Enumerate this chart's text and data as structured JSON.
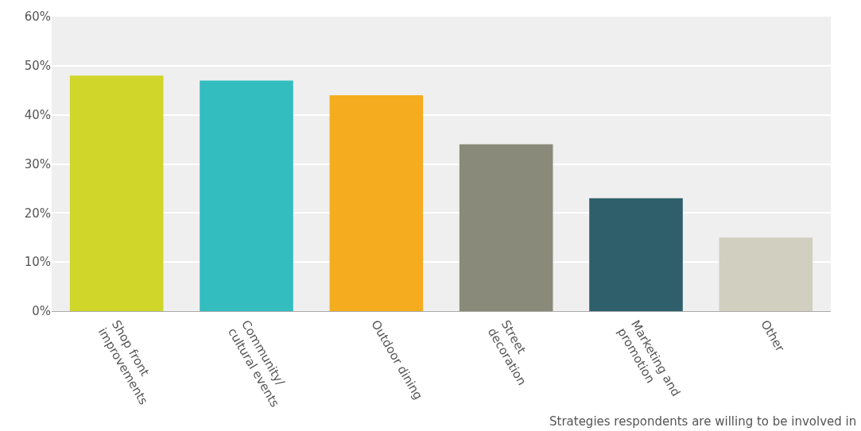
{
  "chart_data": {
    "type": "bar",
    "categories": [
      "Shop front\nimprovements",
      "Community/\ncultural events",
      "Outdoor dining",
      "Street\ndecoration",
      "Marketing and\npromotion",
      "Other"
    ],
    "values": [
      48,
      47,
      44,
      34,
      23,
      15
    ],
    "colors": [
      "#d0d62a",
      "#33bdbf",
      "#f5ad1f",
      "#8a8a7a",
      "#2e5f6b",
      "#d0cfc0"
    ],
    "ylim": [
      0,
      60
    ],
    "yticks": [
      {
        "value": 0,
        "label": "0%"
      },
      {
        "value": 10,
        "label": "10%"
      },
      {
        "value": 20,
        "label": "20%"
      },
      {
        "value": 30,
        "label": "30%"
      },
      {
        "value": 40,
        "label": "40%"
      },
      {
        "value": 50,
        "label": "50%"
      },
      {
        "value": 60,
        "label": "60%"
      }
    ],
    "grid": "y",
    "annotations": [
      "Strategies respondents are willing to be involved in"
    ]
  }
}
